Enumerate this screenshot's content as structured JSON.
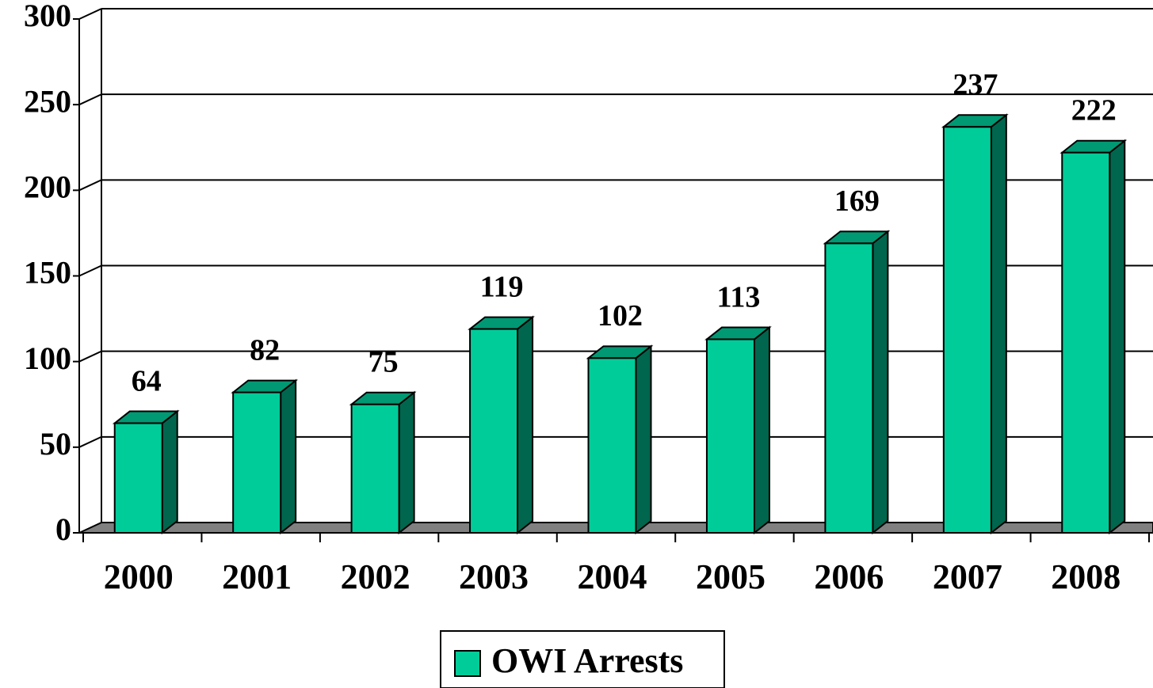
{
  "chart_data": {
    "type": "bar",
    "categories": [
      "2000",
      "2001",
      "2002",
      "2003",
      "2004",
      "2005",
      "2006",
      "2007",
      "2008"
    ],
    "series": [
      {
        "name": "OWI Arrests",
        "color": "#00cc99",
        "values": [
          64,
          82,
          75,
          119,
          102,
          113,
          169,
          237,
          222
        ]
      }
    ],
    "ylim": [
      0,
      300
    ],
    "yticks": [
      0,
      50,
      100,
      150,
      200,
      250,
      300
    ],
    "grid": true,
    "legend": "bottom"
  }
}
